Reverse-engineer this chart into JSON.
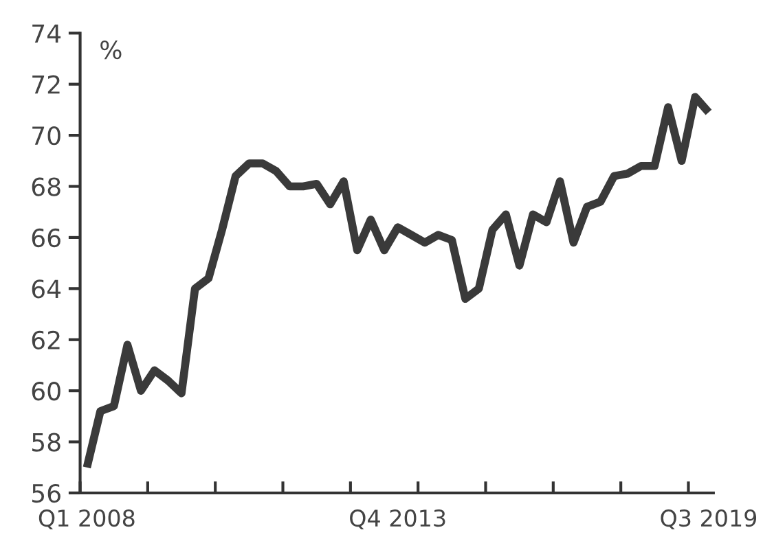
{
  "chart_data": {
    "type": "line",
    "ylabel": "%",
    "categories": [
      "Q1 2008",
      null,
      null,
      null,
      null,
      null,
      null,
      null,
      null,
      null,
      null,
      null,
      null,
      null,
      null,
      null,
      null,
      null,
      null,
      null,
      null,
      null,
      null,
      "Q4 2013",
      null,
      null,
      null,
      null,
      null,
      null,
      null,
      null,
      null,
      null,
      null,
      null,
      null,
      null,
      null,
      null,
      null,
      null,
      null,
      null,
      null,
      null,
      "Q3 2019"
    ],
    "series": [
      {
        "color": "#3a3a3a",
        "values": [
          57.0,
          59.2,
          59.4,
          61.8,
          60.0,
          60.8,
          60.4,
          59.9,
          64.0,
          64.4,
          66.3,
          68.4,
          68.9,
          68.9,
          68.6,
          68.0,
          68.0,
          68.1,
          67.3,
          68.2,
          65.5,
          66.7,
          65.5,
          66.4,
          66.1,
          65.8,
          66.1,
          65.9,
          63.6,
          64.0,
          66.3,
          66.9,
          64.9,
          66.9,
          66.6,
          68.2,
          65.8,
          67.2,
          67.4,
          68.4,
          68.5,
          68.8,
          68.8,
          71.1,
          69.0,
          71.5,
          70.9
        ]
      }
    ],
    "ylim": [
      56,
      74
    ],
    "yticks": [
      56,
      58,
      60,
      62,
      64,
      66,
      68,
      70,
      72,
      74
    ],
    "grid": false,
    "marker": "none",
    "line_style": "solid"
  }
}
